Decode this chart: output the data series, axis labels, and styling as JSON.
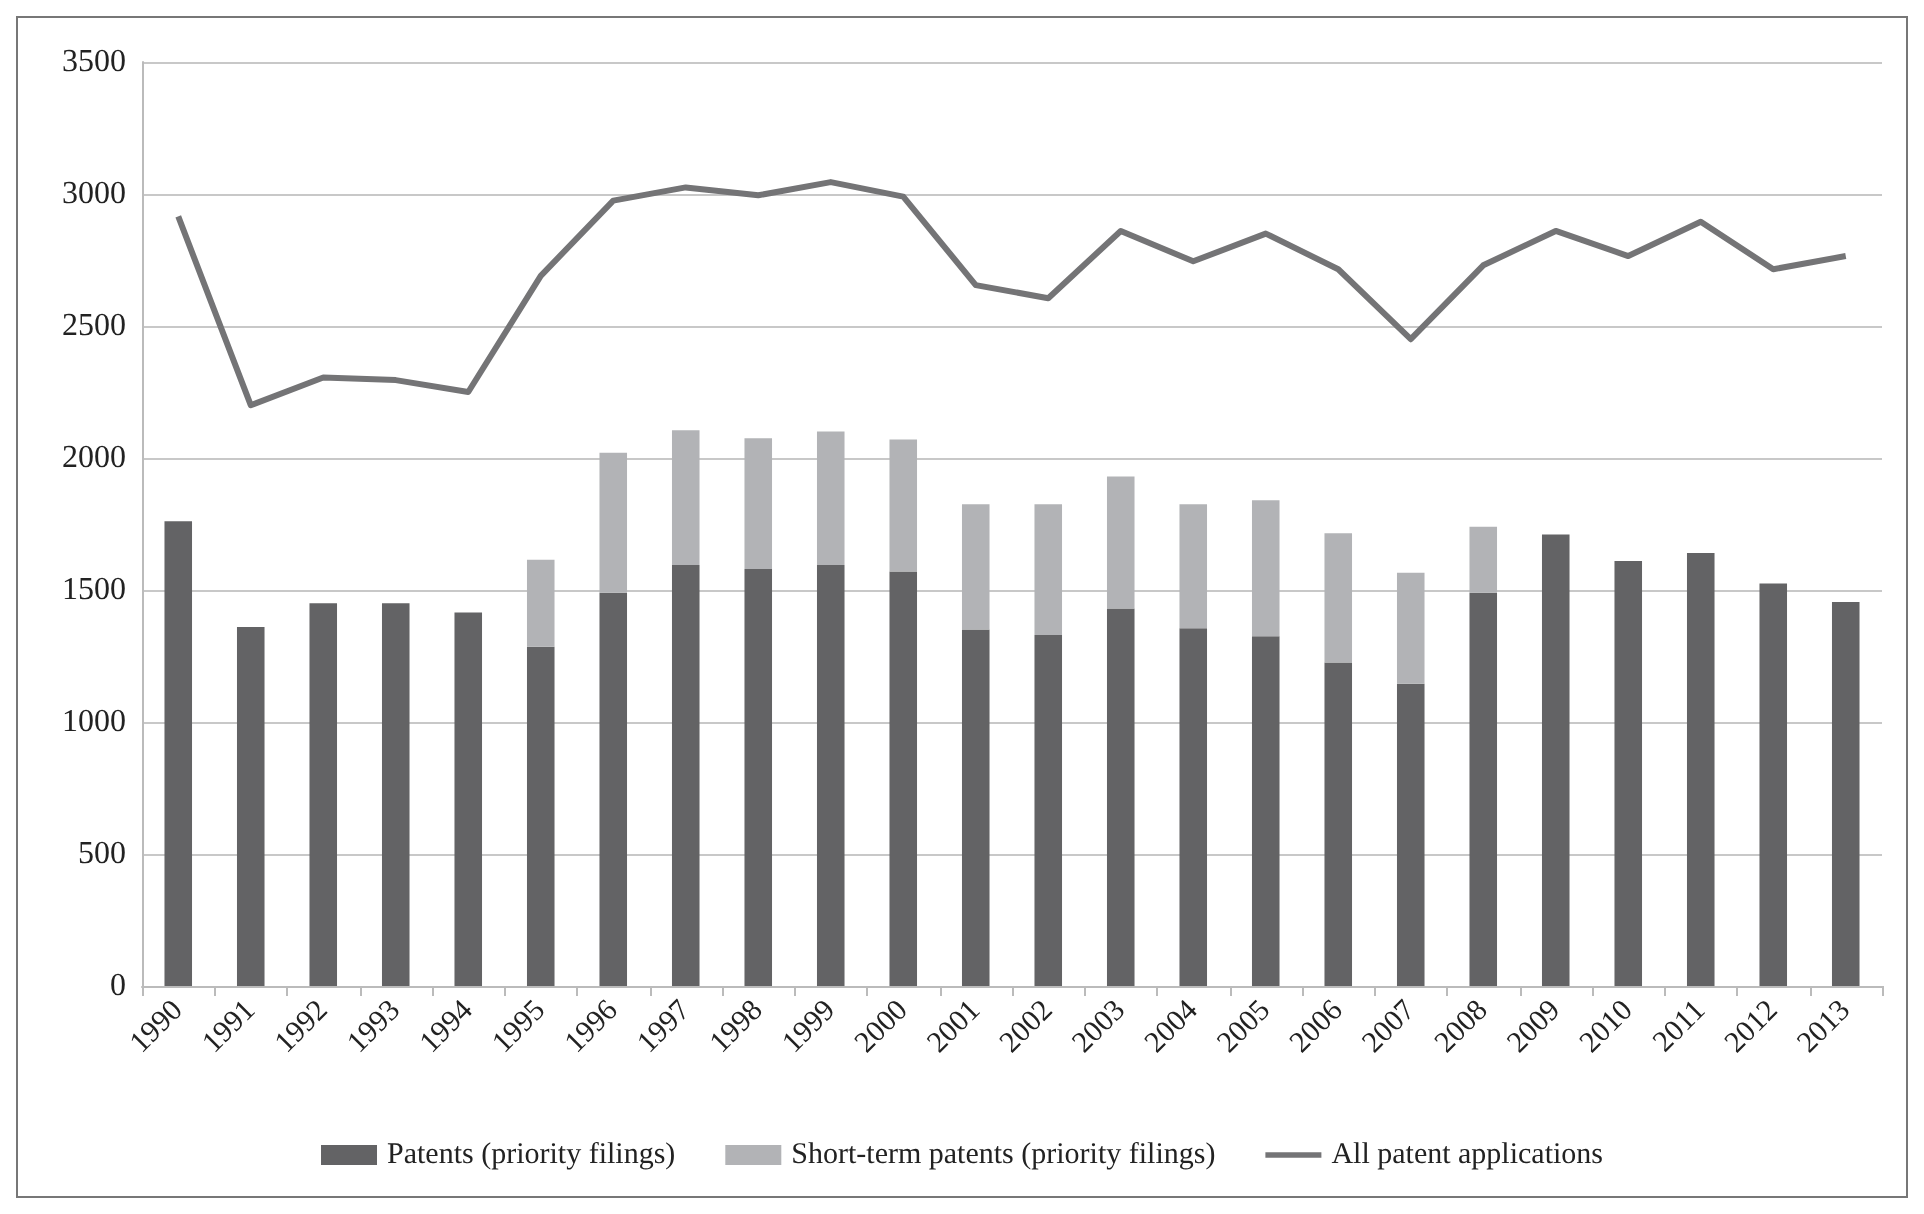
{
  "chart_data": {
    "type": "bar",
    "stacked": true,
    "categories": [
      "1990",
      "1991",
      "1992",
      "1993",
      "1994",
      "1995",
      "1996",
      "1997",
      "1998",
      "1999",
      "2000",
      "2001",
      "2002",
      "2003",
      "2004",
      "2005",
      "2006",
      "2007",
      "2008",
      "2009",
      "2010",
      "2011",
      "2012",
      "2013"
    ],
    "series": [
      {
        "name": "Patents (priority filings)",
        "color": "#636365",
        "values": [
          1760,
          1360,
          1450,
          1450,
          1415,
          1285,
          1490,
          1595,
          1580,
          1595,
          1570,
          1350,
          1330,
          1430,
          1355,
          1325,
          1225,
          1145,
          1490,
          1710,
          1610,
          1640,
          1525,
          1455
        ]
      },
      {
        "name": "Short-term patents (priority filings)",
        "color": "#b2b3b6",
        "values": [
          null,
          null,
          null,
          null,
          null,
          330,
          530,
          510,
          495,
          505,
          500,
          475,
          495,
          500,
          470,
          515,
          490,
          420,
          250,
          null,
          null,
          null,
          null,
          null
        ]
      },
      {
        "name": "All patent applications",
        "type": "line",
        "color": "#747476",
        "values": [
          2915,
          2200,
          2305,
          2295,
          2250,
          2690,
          2975,
          3025,
          2995,
          3045,
          2990,
          2655,
          2605,
          2860,
          2745,
          2850,
          2715,
          2450,
          2730,
          2860,
          2765,
          2895,
          2715,
          2765
        ]
      }
    ],
    "ylim": [
      0,
      3500
    ],
    "yticks": [
      0,
      500,
      1000,
      1500,
      2000,
      2500,
      3000,
      3500
    ],
    "grid": "y",
    "legend": "bottom",
    "marker": "none"
  }
}
